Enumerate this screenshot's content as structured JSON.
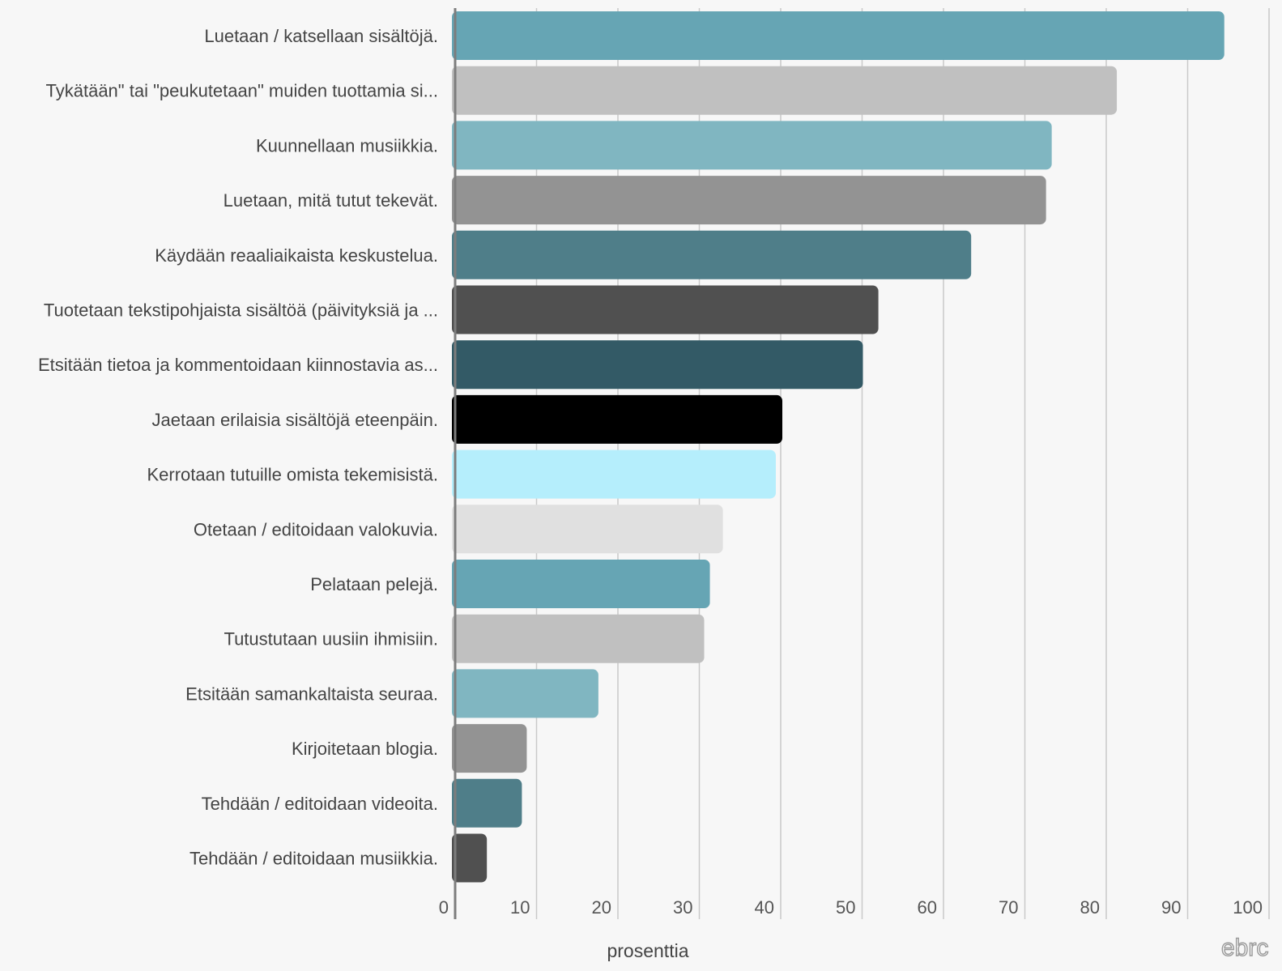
{
  "chart_data": {
    "type": "bar",
    "orientation": "horizontal",
    "categories": [
      "Luetaan / katsellaan sisältöjä.",
      "Tykätään\" tai \"peukutetaan\" muiden tuottamia si...",
      "Kuunnellaan musiikkia.",
      "Luetaan, mitä tutut tekevät.",
      "Käydään reaaliaikaista keskustelua.",
      "Tuotetaan tekstipohjaista sisältöä (päivityksiä ja ...",
      "Etsitään tietoa ja kommentoidaan kiinnostavia as...",
      "Jaetaan erilaisia sisältöjä eteenpäin.",
      "Kerrotaan tutuille omista tekemisistä.",
      "Otetaan / editoidaan valokuvia.",
      "Pelataan pelejä.",
      "Tutustutaan uusiin ihmisiin.",
      "Etsitään samankaltaista seuraa.",
      "Kirjoitetaan blogia.",
      "Tehdään / editoidaan videoita.",
      "Tehdään / editoidaan musiikkia."
    ],
    "values": [
      94.5,
      81.3,
      73.3,
      72.6,
      63.4,
      52.0,
      50.1,
      40.2,
      39.4,
      32.9,
      31.3,
      30.6,
      17.6,
      8.8,
      8.2,
      3.9
    ],
    "colors": [
      "#66a5b4",
      "#c0c0c0",
      "#80b6c1",
      "#939393",
      "#4f7e89",
      "#505050",
      "#335a66",
      "#000000",
      "#b5eefc",
      "#e0e0e0",
      "#66a5b4",
      "#c0c0c0",
      "#80b6c1",
      "#939393",
      "#4f7e89",
      "#505050"
    ],
    "xlabel": "prosenttia",
    "ylabel": "",
    "title": "",
    "xlim": [
      0,
      100
    ],
    "xticks": [
      "0",
      "10",
      "20",
      "30",
      "40",
      "50",
      "60",
      "70",
      "80",
      "90",
      "100"
    ],
    "grid": true,
    "legend": "none"
  },
  "logo": {
    "text": "ebrc",
    "icon": "ebrc-logo-icon"
  }
}
